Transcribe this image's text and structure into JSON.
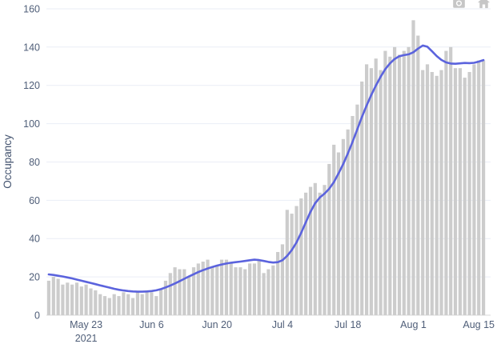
{
  "chart_data": {
    "type": "bar",
    "title": "",
    "xlabel": "",
    "ylabel": "Occupancy",
    "ylim": [
      0,
      165
    ],
    "grid": true,
    "legend": "none",
    "y_ticks": [
      0,
      20,
      40,
      60,
      80,
      100,
      120,
      140,
      160
    ],
    "x_ticks": [
      {
        "pos": 8,
        "label": "May 23",
        "sublabel": "2021"
      },
      {
        "pos": 22,
        "label": "Jun 6",
        "sublabel": ""
      },
      {
        "pos": 36,
        "label": "Jun 20",
        "sublabel": ""
      },
      {
        "pos": 50,
        "label": "Jul 4",
        "sublabel": ""
      },
      {
        "pos": 64,
        "label": "Jul 18",
        "sublabel": ""
      },
      {
        "pos": 78,
        "label": "Aug 1",
        "sublabel": ""
      },
      {
        "pos": 92,
        "label": "Aug 15",
        "sublabel": ""
      }
    ],
    "series": [
      {
        "name": "daily-occupancy-bars",
        "type": "bar",
        "color": "#cccccc",
        "values": [
          18,
          20,
          19,
          16,
          17,
          16,
          17,
          15,
          16,
          14,
          13,
          11,
          10,
          9,
          11,
          10,
          12,
          11,
          9,
          12,
          11,
          13,
          12,
          10,
          14,
          18,
          22,
          25,
          24,
          24,
          20,
          25,
          27,
          28,
          29,
          25,
          26,
          29,
          29,
          27,
          25,
          25,
          24,
          27,
          27,
          29,
          22,
          24,
          26,
          33,
          37,
          55,
          53,
          57,
          61,
          64,
          67,
          69,
          64,
          68,
          79,
          89,
          85,
          92,
          97,
          104,
          110,
          122,
          131,
          129,
          134,
          128,
          138,
          135,
          140,
          136,
          138,
          140,
          154,
          146,
          128,
          131,
          127,
          125,
          128,
          138,
          140,
          129,
          129,
          124,
          127,
          131,
          133,
          133
        ]
      },
      {
        "name": "occupancy-trend-line",
        "type": "line",
        "color": "#5b63dd",
        "values": [
          21.3,
          21.0,
          20.6,
          20.2,
          19.7,
          19.2,
          18.6,
          18.0,
          17.4,
          16.8,
          16.2,
          15.6,
          15.0,
          14.4,
          13.8,
          13.3,
          12.9,
          12.6,
          12.4,
          12.3,
          12.3,
          12.4,
          12.6,
          13.0,
          13.6,
          14.5,
          15.5,
          16.6,
          17.8,
          19.0,
          20.2,
          21.4,
          22.5,
          23.5,
          24.4,
          25.2,
          25.9,
          26.5,
          27.0,
          27.4,
          27.7,
          28.0,
          28.3,
          28.7,
          29.0,
          28.8,
          28.3,
          27.8,
          27.5,
          27.7,
          28.7,
          31.0,
          34.0,
          38.0,
          43.0,
          48.5,
          54.0,
          58.5,
          61.5,
          63.5,
          66.0,
          69.5,
          74.0,
          79.0,
          84.5,
          90.5,
          97.0,
          103.5,
          109.5,
          115.0,
          120.0,
          124.5,
          128.5,
          131.5,
          133.8,
          135.2,
          135.8,
          136.2,
          137.3,
          139.2,
          140.8,
          140.2,
          137.8,
          135.3,
          133.3,
          132.0,
          131.4,
          131.3,
          131.5,
          131.7,
          131.6,
          131.8,
          132.4,
          133.2
        ]
      }
    ],
    "colors": {
      "bar": "#cccccc",
      "line": "#5b63dd",
      "grid": "#eaeef6",
      "zero_line": "#d9d9d9",
      "tick_text": "#4f5e78",
      "axis_title": "#42526e",
      "modebar_icon": "#c6c6c6",
      "background": "#ffffff"
    }
  },
  "modebar": {
    "icons": [
      {
        "name": "camera-icon",
        "action": "download plot"
      },
      {
        "name": "home-icon",
        "action": "reset axes"
      }
    ]
  }
}
